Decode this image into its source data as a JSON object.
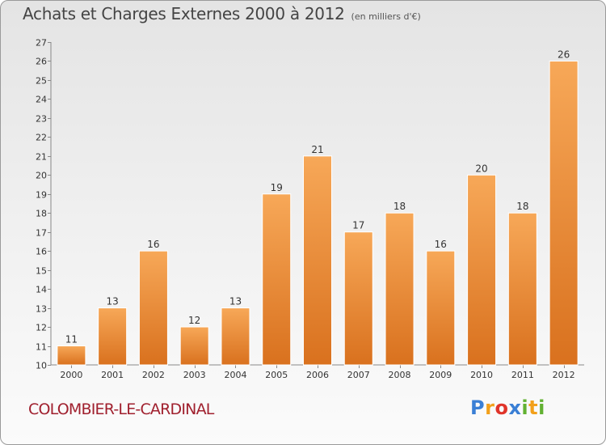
{
  "header": {
    "title": "Achats et Charges Externes 2000 à 2012",
    "unit": "(en milliers d'€)"
  },
  "footer": {
    "place": "COLOMBIER-LE-CARDINAL",
    "logo_letters": [
      "P",
      "r",
      "o",
      "x",
      "i",
      "t",
      "i"
    ],
    "logo_colors": [
      "#3a7fd5",
      "#f2a01b",
      "#e0342a",
      "#3a7fd5",
      "#62b132",
      "#f2a01b",
      "#62b132"
    ]
  },
  "chart_data": {
    "type": "bar",
    "title": "Achats et Charges Externes 2000 à 2012",
    "subtitle": "(en milliers d'€)",
    "xlabel": "",
    "ylabel": "",
    "categories": [
      "2000",
      "2001",
      "2002",
      "2003",
      "2004",
      "2005",
      "2006",
      "2007",
      "2008",
      "2009",
      "2010",
      "2011",
      "2012"
    ],
    "values": [
      11,
      13,
      16,
      12,
      13,
      19,
      21,
      17,
      18,
      16,
      20,
      18,
      26
    ],
    "ylim": [
      10,
      27
    ],
    "yticks": [
      10,
      11,
      12,
      13,
      14,
      15,
      16,
      17,
      18,
      19,
      20,
      21,
      22,
      23,
      24,
      25,
      26,
      27
    ],
    "grid": false,
    "bar_color_top": "#f7a858",
    "bar_color_bottom": "#d9711e"
  }
}
